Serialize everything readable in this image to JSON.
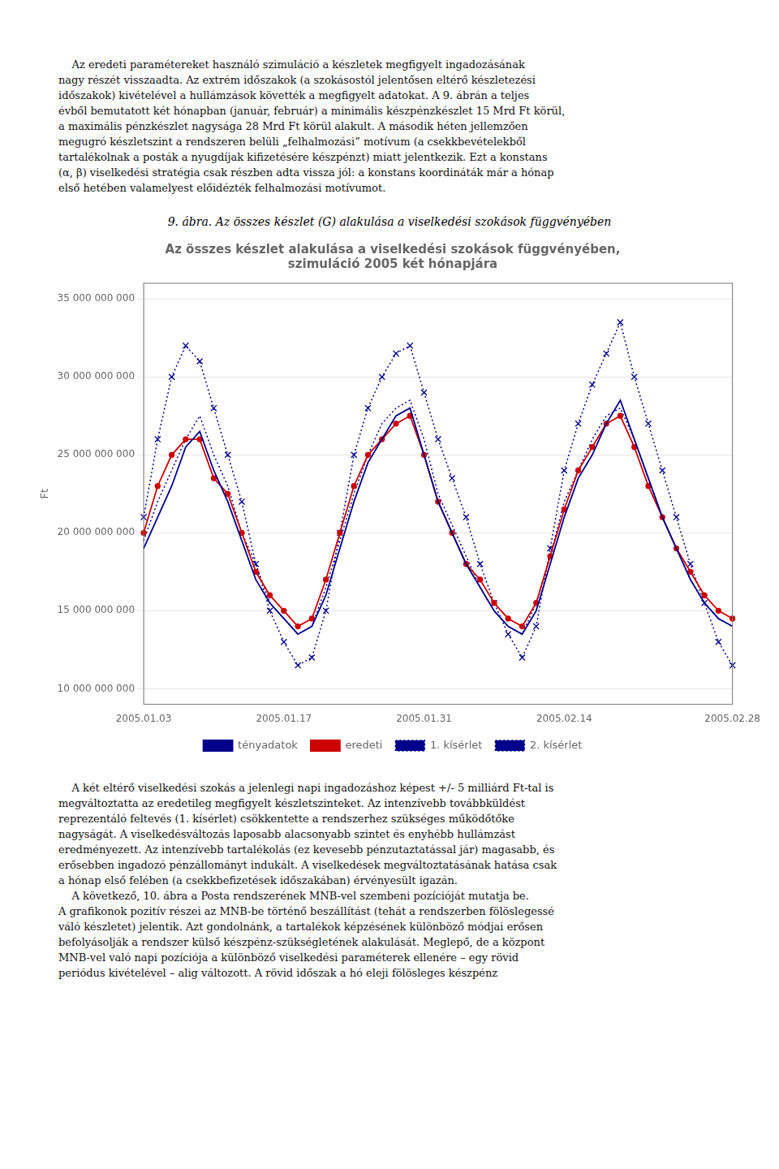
{
  "chart_data": {
    "type": "line",
    "title": [
      "Az összes készlet alakulása a viselkedési szokások függvényében,",
      "szimuláció 2005 két hónapjára"
    ],
    "y_label": "Ft",
    "caption": "9. ábra. Az összes készlet (G) alakulása a viselkedési szokások függvényében",
    "text_top": [
      "    Az eredeti paramétereket használó szimuláció a készletek megfigyelt ingadozásának",
      "nagy részét visszaadta. Az extrém időszakok (a szokásostól jelentősen eltérő készletezési",
      "időszakok) kivételével a hullámzások követték a megfigyelt adatokat. A 9. ábrán a teljes",
      "évből bemutatott két hónapban (január, február) a minimális készpénzkészlet 15 Mrd Ft körül,",
      "a maximális pénzkészlet nagysága 28 Mrd Ft körül alakult. A második héten jellemzően",
      "megugró készletszint a rendszeren belüli „felhalmozási” motívum (a csekkbevételekből",
      "tartalékolnak a posták a nyugdíjak kifizetésére készpénzt) miatt jelentkezik. Ezt a konstans",
      "(α, β) viselkedési stratégia csak részben adta vissza jól: a konstans koordináták már a hónap",
      "első hetében valamelyest előidézték felhalmozási motívumot."
    ],
    "text_bottom": [
      "    A két eltérő viselkedési szokás a jelenlegi napi ingadozáshoz képest +/- 5 milliárd Ft-tal is",
      "megváltoztatta az eredetileg megfigyelt készletszinteket. Az intenzívebb továbbküldést",
      "reprezentáló feltevés (1. kísérlet) csökkentette a rendszerhez szükséges működőtőke",
      "nagyságát. A viselkedésváltozás laposabb alacsonyabb szintet és enyhébb hullámzást",
      "eredményezett. Az intenzívebb tartalékolás (ez kevesebb pénzutaztatással jár) magasabb, és",
      "erősebben ingadozó pénzállományt indukált. A viselkedések megváltoztatásának hatása csak",
      "a hónap első felében (a csekkbefizetések időszakában) érvényesült igazán.",
      "    A következő, 10. ábra a Posta rendszerének MNB-vel szembeni pozícióját mutatja be.",
      "A grafikonok pozitív részei az MNB-be történő beszállítást (tehát a rendszerben fölöslegessé",
      "váló készletet) jelentik. Azt gondolnánk, a tartalékok képzésének különböző módjai erősen",
      "befolyásolják a rendszer külső készpénz-szükségletének alakulását. Meglepő, de a központ",
      "MNB-vel való napi pozíciója a különböző viselkedési paraméterek ellenére – egy rövid",
      "periódus kivételével – alig változott. A rövid időszak a hó eleji fölösleges készpénz"
    ],
    "categories": [
      "2005.01.03",
      null,
      null,
      null,
      null,
      null,
      null,
      null,
      null,
      null,
      "2005.01.17",
      null,
      null,
      null,
      null,
      null,
      null,
      null,
      null,
      null,
      "2005.01.31",
      null,
      null,
      null,
      null,
      null,
      null,
      null,
      null,
      null,
      "2005.02.14",
      null,
      null,
      null,
      null,
      null,
      null,
      null,
      null,
      null,
      null,
      null,
      "2005.02.28"
    ],
    "ylim": [
      9000000000,
      36000000000
    ],
    "yticks": [
      {
        "value": 10000000000,
        "label": "10 000 000 000"
      },
      {
        "value": 15000000000,
        "label": "15 000 000 000"
      },
      {
        "value": 20000000000,
        "label": "20 000 000 000"
      },
      {
        "value": 25000000000,
        "label": "25 000 000 000"
      },
      {
        "value": 30000000000,
        "label": "30 000 000 000"
      },
      {
        "value": 35000000000,
        "label": "35 000 000 000"
      }
    ],
    "grid": "y",
    "legend": "bottom",
    "series": [
      {
        "name": "tényadatok",
        "color": "#00008B",
        "line_style": "solid",
        "marker": "none",
        "values": [
          19000000000,
          21000000000,
          23000000000,
          25500000000,
          26500000000,
          24000000000,
          22000000000,
          19500000000,
          17000000000,
          15500000000,
          14500000000,
          13500000000,
          14000000000,
          16000000000,
          19000000000,
          22000000000,
          24500000000,
          26000000000,
          27500000000,
          28000000000,
          25000000000,
          22000000000,
          20000000000,
          18000000000,
          16500000000,
          15000000000,
          14000000000,
          13500000000,
          15000000000,
          18000000000,
          21000000000,
          23500000000,
          25000000000,
          27000000000,
          28500000000,
          26000000000,
          23500000000,
          21000000000,
          19000000000,
          17000000000,
          15500000000,
          14500000000,
          14000000000
        ]
      },
      {
        "name": "eredeti",
        "color": "#CC0000",
        "line_style": "solid",
        "marker": "circle",
        "values": [
          20000000000,
          23000000000,
          25000000000,
          26000000000,
          26000000000,
          23500000000,
          22500000000,
          20000000000,
          17500000000,
          16000000000,
          15000000000,
          14000000000,
          14500000000,
          17000000000,
          20000000000,
          23000000000,
          25000000000,
          26000000000,
          27000000000,
          27500000000,
          25000000000,
          22000000000,
          20000000000,
          18000000000,
          17000000000,
          15500000000,
          14500000000,
          14000000000,
          15500000000,
          18500000000,
          21500000000,
          24000000000,
          25500000000,
          27000000000,
          27500000000,
          25500000000,
          23000000000,
          21000000000,
          19000000000,
          17500000000,
          16000000000,
          15000000000,
          14500000000
        ]
      },
      {
        "name": "1. kísérlet",
        "color": "#00008B",
        "line_style": "dotted",
        "marker": "none",
        "values": [
          19500000000,
          22000000000,
          24000000000,
          26000000000,
          27500000000,
          25000000000,
          23000000000,
          20000000000,
          18000000000,
          15500000000,
          14500000000,
          13500000000,
          14000000000,
          16500000000,
          19500000000,
          22500000000,
          25000000000,
          27000000000,
          28000000000,
          28500000000,
          26000000000,
          22500000000,
          20500000000,
          18500000000,
          16500000000,
          15000000000,
          14000000000,
          13500000000,
          15500000000,
          18500000000,
          22000000000,
          24000000000,
          26000000000,
          27500000000,
          28000000000,
          26000000000,
          23500000000,
          21000000000,
          19000000000,
          17000000000,
          15500000000,
          14500000000,
          14000000000
        ]
      },
      {
        "name": "2. kísérlet",
        "color": "#00008B",
        "line_style": "dotted",
        "marker": "x",
        "values": [
          21000000000,
          26000000000,
          30000000000,
          32000000000,
          31000000000,
          28000000000,
          25000000000,
          22000000000,
          18000000000,
          15000000000,
          13000000000,
          11500000000,
          12000000000,
          15000000000,
          20000000000,
          25000000000,
          28000000000,
          30000000000,
          31500000000,
          32000000000,
          29000000000,
          26000000000,
          23500000000,
          21000000000,
          18000000000,
          15500000000,
          13500000000,
          12000000000,
          14000000000,
          19000000000,
          24000000000,
          27000000000,
          29500000000,
          31500000000,
          33500000000,
          30000000000,
          27000000000,
          24000000000,
          21000000000,
          18000000000,
          15500000000,
          13000000000,
          11500000000
        ]
      }
    ]
  }
}
